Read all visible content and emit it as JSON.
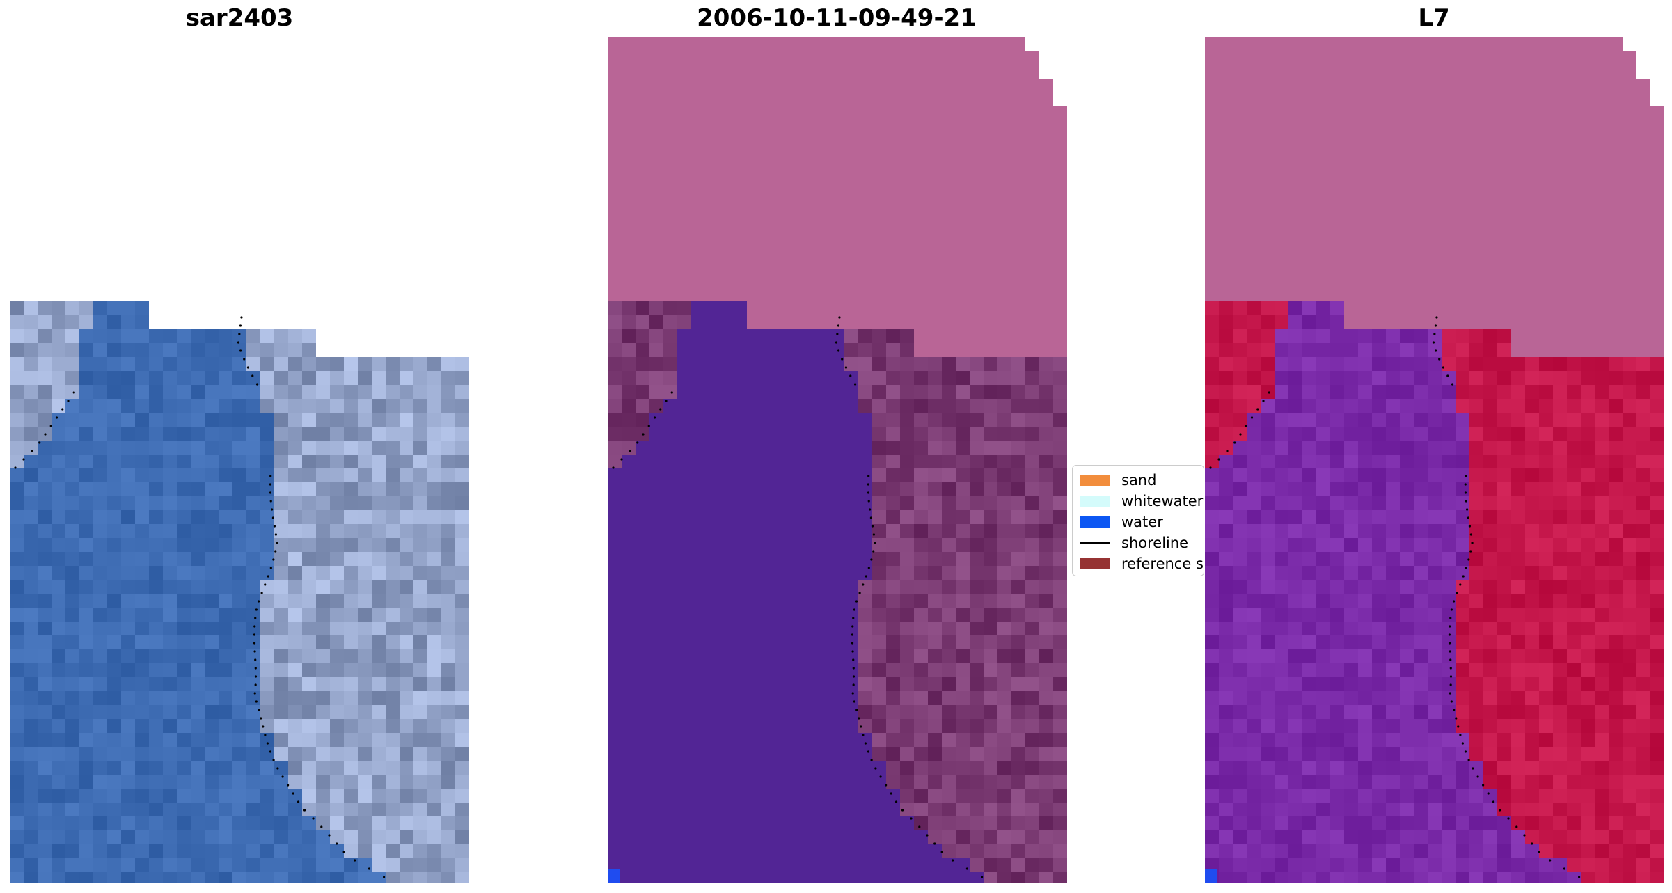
{
  "panels": [
    {
      "title": "sar2403",
      "kind": "rgb"
    },
    {
      "title": "2006-10-11-09-49-21",
      "kind": "classified"
    },
    {
      "title": "L7",
      "kind": "index"
    }
  ],
  "legend": {
    "items": [
      {
        "label": "sand",
        "color": "#f28d3c",
        "kind": "patch"
      },
      {
        "label": "whitewater",
        "color": "#d4fbfb",
        "kind": "patch"
      },
      {
        "label": "water",
        "color": "#0c57f3",
        "kind": "patch"
      },
      {
        "label": "shoreline",
        "color": "#000000",
        "kind": "line"
      },
      {
        "label": "reference shoreline",
        "color": "#963232",
        "kind": "patch"
      }
    ]
  },
  "colors": {
    "cloud_mask": "#b96596",
    "water_dark": "#522595",
    "sand_dark": "#7a3a72",
    "index_land": "#c4164a",
    "index_water": "#7a2aa8",
    "rgb_water": "#3d6bb2",
    "rgb_land": "#93a3c8"
  }
}
